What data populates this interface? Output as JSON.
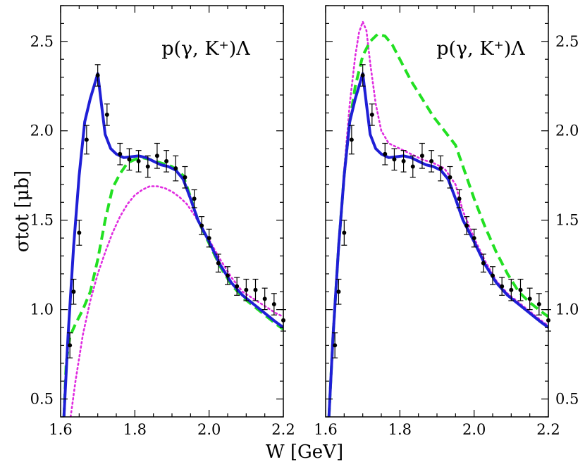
{
  "chart_data": [
    {
      "type": "line",
      "panel": "left",
      "title": "p(γ, K⁺)Λ",
      "xlabel": "W [GeV]",
      "ylabel": "σtot [μb]",
      "xlim": [
        1.6,
        2.2
      ],
      "ylim": [
        0.4,
        2.7
      ],
      "xticks": [
        1.6,
        1.8,
        2.0,
        2.2
      ],
      "xtick_labels": [
        "1.6",
        "1.8",
        "2.0",
        "2.2"
      ],
      "yticks": [
        0.5,
        1.0,
        1.5,
        2.0,
        2.5
      ],
      "ytick_labels": [
        "0.5",
        "1.0",
        "1.5",
        "2.0",
        "2.5"
      ],
      "grid": false,
      "series": [
        {
          "style": "solid",
          "color": "#1f1fd6",
          "x": [
            1.609,
            1.62,
            1.635,
            1.65,
            1.665,
            1.68,
            1.69,
            1.7,
            1.71,
            1.72,
            1.735,
            1.75,
            1.77,
            1.79,
            1.81,
            1.83,
            1.85,
            1.87,
            1.89,
            1.91,
            1.93,
            1.95,
            1.97,
            2.0,
            2.03,
            2.06,
            2.09,
            2.12,
            2.15,
            2.18,
            2.2
          ],
          "y": [
            0.4,
            0.85,
            1.35,
            1.75,
            2.05,
            2.18,
            2.25,
            2.32,
            2.15,
            1.98,
            1.9,
            1.87,
            1.85,
            1.855,
            1.86,
            1.85,
            1.83,
            1.81,
            1.8,
            1.78,
            1.73,
            1.62,
            1.5,
            1.38,
            1.25,
            1.15,
            1.08,
            1.03,
            0.98,
            0.93,
            0.9
          ]
        },
        {
          "style": "dashed",
          "color": "#22e022",
          "x": [
            1.609,
            1.615,
            1.625,
            1.64,
            1.66,
            1.68,
            1.7,
            1.72,
            1.74,
            1.76,
            1.78,
            1.8,
            1.82,
            1.84,
            1.87,
            1.9,
            1.93,
            1.95,
            1.97,
            2.0,
            2.03,
            2.06,
            2.09,
            2.12,
            2.15,
            2.18,
            2.2
          ],
          "y": [
            0.4,
            0.7,
            0.85,
            0.92,
            1.0,
            1.1,
            1.28,
            1.5,
            1.68,
            1.76,
            1.82,
            1.84,
            1.85,
            1.84,
            1.82,
            1.8,
            1.75,
            1.63,
            1.5,
            1.37,
            1.24,
            1.14,
            1.07,
            1.02,
            0.97,
            0.92,
            0.89
          ]
        },
        {
          "style": "dotted",
          "color": "#e02ce0",
          "x": [
            1.627,
            1.64,
            1.66,
            1.68,
            1.7,
            1.72,
            1.74,
            1.76,
            1.78,
            1.8,
            1.82,
            1.84,
            1.86,
            1.88,
            1.9,
            1.92,
            1.94,
            1.96,
            1.98,
            2.0,
            2.03,
            2.06,
            2.09,
            2.12,
            2.15,
            2.18,
            2.2
          ],
          "y": [
            0.4,
            0.6,
            0.86,
            1.05,
            1.2,
            1.32,
            1.43,
            1.52,
            1.59,
            1.64,
            1.67,
            1.69,
            1.69,
            1.68,
            1.66,
            1.63,
            1.59,
            1.53,
            1.46,
            1.39,
            1.28,
            1.18,
            1.1,
            1.06,
            1.02,
            0.98,
            0.96
          ]
        }
      ],
      "data_points": {
        "x": [
          1.625,
          1.635,
          1.65,
          1.67,
          1.7,
          1.725,
          1.76,
          1.785,
          1.81,
          1.835,
          1.86,
          1.885,
          1.91,
          1.935,
          1.96,
          1.98,
          2.0,
          2.025,
          2.05,
          2.075,
          2.1,
          2.125,
          2.15,
          2.175,
          2.2
        ],
        "y": [
          0.8,
          1.1,
          1.43,
          1.95,
          2.31,
          2.09,
          1.87,
          1.84,
          1.83,
          1.8,
          1.86,
          1.83,
          1.79,
          1.74,
          1.62,
          1.47,
          1.4,
          1.26,
          1.19,
          1.13,
          1.11,
          1.11,
          1.06,
          1.03,
          0.94
        ],
        "err": [
          0.07,
          0.07,
          0.07,
          0.08,
          0.06,
          0.06,
          0.06,
          0.06,
          0.06,
          0.06,
          0.07,
          0.06,
          0.07,
          0.06,
          0.05,
          0.05,
          0.05,
          0.05,
          0.05,
          0.05,
          0.06,
          0.06,
          0.06,
          0.06,
          0.06
        ]
      }
    },
    {
      "type": "line",
      "panel": "right",
      "title": "p(γ, K⁺)Λ",
      "xlabel": "W [GeV]",
      "ylabel": "",
      "xlim": [
        1.6,
        2.2
      ],
      "ylim": [
        0.4,
        2.7
      ],
      "xticks": [
        1.6,
        1.8,
        2.0,
        2.2
      ],
      "xtick_labels": [
        "1.6",
        "1.8",
        "2.0",
        "2.2"
      ],
      "yticks": [
        0.5,
        1.0,
        1.5,
        2.0,
        2.5
      ],
      "ytick_labels": [
        "0.5",
        "1.0",
        "1.5",
        "2.0",
        "2.5"
      ],
      "grid": false,
      "series": [
        {
          "style": "solid",
          "color": "#1f1fd6",
          "x": [
            1.609,
            1.62,
            1.635,
            1.65,
            1.665,
            1.68,
            1.69,
            1.7,
            1.71,
            1.72,
            1.735,
            1.75,
            1.77,
            1.79,
            1.81,
            1.83,
            1.85,
            1.87,
            1.89,
            1.91,
            1.93,
            1.95,
            1.97,
            2.0,
            2.03,
            2.06,
            2.09,
            2.12,
            2.15,
            2.18,
            2.2
          ],
          "y": [
            0.4,
            0.85,
            1.35,
            1.75,
            2.05,
            2.18,
            2.25,
            2.32,
            2.15,
            1.98,
            1.9,
            1.87,
            1.85,
            1.855,
            1.86,
            1.85,
            1.83,
            1.81,
            1.8,
            1.78,
            1.73,
            1.62,
            1.5,
            1.38,
            1.25,
            1.15,
            1.08,
            1.03,
            0.98,
            0.93,
            0.9
          ]
        },
        {
          "style": "dashed",
          "color": "#22e022",
          "x": [
            1.609,
            1.62,
            1.635,
            1.65,
            1.665,
            1.68,
            1.7,
            1.72,
            1.74,
            1.76,
            1.78,
            1.8,
            1.83,
            1.86,
            1.89,
            1.92,
            1.95,
            1.97,
            2.0,
            2.03,
            2.06,
            2.09,
            2.12,
            2.15,
            2.18,
            2.2
          ],
          "y": [
            0.4,
            0.85,
            1.35,
            1.75,
            2.05,
            2.25,
            2.42,
            2.5,
            2.54,
            2.53,
            2.48,
            2.4,
            2.28,
            2.18,
            2.08,
            2.0,
            1.92,
            1.8,
            1.62,
            1.46,
            1.32,
            1.2,
            1.1,
            1.04,
            0.99,
            0.96
          ]
        },
        {
          "style": "dotted",
          "color": "#e02ce0",
          "x": [
            1.609,
            1.62,
            1.635,
            1.65,
            1.665,
            1.68,
            1.69,
            1.7,
            1.71,
            1.72,
            1.735,
            1.75,
            1.77,
            1.8,
            1.83,
            1.86,
            1.89,
            1.92,
            1.95,
            1.97,
            2.0,
            2.03,
            2.06,
            2.09,
            2.12,
            2.15,
            2.18,
            2.2
          ],
          "y": [
            0.4,
            0.85,
            1.35,
            1.78,
            2.15,
            2.42,
            2.55,
            2.61,
            2.56,
            2.38,
            2.15,
            2.0,
            1.93,
            1.9,
            1.87,
            1.84,
            1.82,
            1.79,
            1.7,
            1.55,
            1.4,
            1.27,
            1.16,
            1.09,
            1.04,
            0.99,
            0.94,
            0.91
          ]
        }
      ],
      "data_points": {
        "x": [
          1.625,
          1.635,
          1.65,
          1.67,
          1.7,
          1.725,
          1.76,
          1.785,
          1.81,
          1.835,
          1.86,
          1.885,
          1.91,
          1.935,
          1.96,
          1.98,
          2.0,
          2.025,
          2.05,
          2.075,
          2.1,
          2.125,
          2.15,
          2.175,
          2.2
        ],
        "y": [
          0.8,
          1.1,
          1.43,
          1.95,
          2.31,
          2.09,
          1.87,
          1.84,
          1.83,
          1.8,
          1.86,
          1.83,
          1.79,
          1.74,
          1.62,
          1.47,
          1.4,
          1.26,
          1.19,
          1.13,
          1.11,
          1.11,
          1.06,
          1.03,
          0.94
        ],
        "err": [
          0.07,
          0.07,
          0.07,
          0.08,
          0.06,
          0.06,
          0.06,
          0.06,
          0.06,
          0.06,
          0.07,
          0.06,
          0.07,
          0.06,
          0.05,
          0.05,
          0.05,
          0.05,
          0.05,
          0.05,
          0.06,
          0.06,
          0.06,
          0.06,
          0.06
        ]
      }
    }
  ],
  "colors": {
    "solid": "#1f1fd6",
    "dashed": "#22e022",
    "dotted": "#e02ce0",
    "points": "#000000"
  }
}
